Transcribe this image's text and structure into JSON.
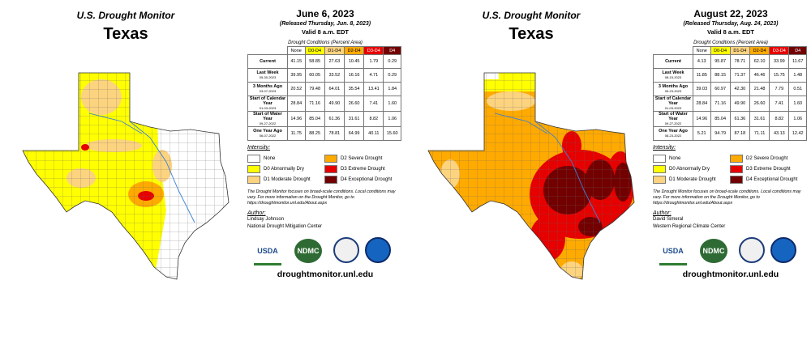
{
  "panels": [
    {
      "header": {
        "program": "U.S. Drought Monitor",
        "state": "Texas"
      },
      "date": "June 6, 2023",
      "released": "(Released Thursday, Jun. 8, 2023)",
      "valid": "Valid 8 a.m. EDT",
      "table": {
        "caption": "Drought Conditions (Percent Area)",
        "columns": [
          {
            "label": "None",
            "color": "#ffffff"
          },
          {
            "label": "D0-D4",
            "color": "#ffff00"
          },
          {
            "label": "D1-D4",
            "color": "#fcd37f"
          },
          {
            "label": "D2-D4",
            "color": "#ffaa00"
          },
          {
            "label": "D3-D4",
            "color": "#e60000"
          },
          {
            "label": "D4",
            "color": "#730000"
          }
        ],
        "rows": [
          {
            "label": "Current",
            "values": [
              "41.15",
              "58.85",
              "27.63",
              "10.45",
              "1.79",
              "0.29"
            ]
          },
          {
            "label": "Last Week",
            "date": "05-30-2023",
            "values": [
              "39.95",
              "60.05",
              "33.52",
              "16.16",
              "4.71",
              "0.29"
            ]
          },
          {
            "label": "3 Months Ago",
            "date": "03-07-2023",
            "values": [
              "20.52",
              "79.48",
              "64.01",
              "35.54",
              "13.41",
              "1.84"
            ]
          },
          {
            "label": "Start of Calendar Year",
            "date": "01-03-2023",
            "values": [
              "28.84",
              "71.16",
              "49.90",
              "26.60",
              "7.41",
              "1.60"
            ]
          },
          {
            "label": "Start of Water Year",
            "date": "09-27-2022",
            "values": [
              "14.96",
              "85.04",
              "61.36",
              "31.61",
              "8.82",
              "1.06"
            ]
          },
          {
            "label": "One Year Ago",
            "date": "06-07-2022",
            "values": [
              "11.75",
              "88.25",
              "78.81",
              "64.99",
              "40.11",
              "15.60"
            ]
          }
        ]
      },
      "intensity": {
        "title": "Intensity:",
        "items": [
          {
            "label": "None",
            "color": "#ffffff"
          },
          {
            "label": "D0 Abnormally Dry",
            "color": "#ffff00"
          },
          {
            "label": "D1 Moderate Drought",
            "color": "#fcd37f"
          },
          {
            "label": "D2 Severe Drought",
            "color": "#ffaa00"
          },
          {
            "label": "D3 Extreme Drought",
            "color": "#e60000"
          },
          {
            "label": "D4 Exceptional Drought",
            "color": "#730000"
          }
        ]
      },
      "note": "The Drought Monitor focuses on broad-scale conditions. Local conditions may vary. For more information on the Drought Monitor, go to https://droughtmonitor.unl.edu/About.aspx",
      "author": {
        "title": "Author:",
        "name": "Lindsay Johnson",
        "org": "National Drought Mitigation Center"
      },
      "logos": [
        "USDA",
        "NDMC"
      ],
      "url": "droughtmonitor.unl.edu"
    },
    {
      "header": {
        "program": "U.S. Drought Monitor",
        "state": "Texas"
      },
      "date": "August 22, 2023",
      "released": "(Released Thursday, Aug. 24, 2023)",
      "valid": "Valid 8 a.m. EDT",
      "table": {
        "caption": "Drought Conditions (Percent Area)",
        "columns": [
          {
            "label": "None",
            "color": "#ffffff"
          },
          {
            "label": "D0-D4",
            "color": "#ffff00"
          },
          {
            "label": "D1-D4",
            "color": "#fcd37f"
          },
          {
            "label": "D2-D4",
            "color": "#ffaa00"
          },
          {
            "label": "D3-D4",
            "color": "#e60000"
          },
          {
            "label": "D4",
            "color": "#730000"
          }
        ],
        "rows": [
          {
            "label": "Current",
            "values": [
              "4.13",
              "95.87",
              "78.71",
              "62.10",
              "33.99",
              "11.67"
            ]
          },
          {
            "label": "Last Week",
            "date": "08-15-2023",
            "values": [
              "11.85",
              "88.15",
              "71.37",
              "46.46",
              "15.75",
              "1.48"
            ]
          },
          {
            "label": "3 Months Ago",
            "date": "05-23-2023",
            "values": [
              "39.03",
              "60.97",
              "42.30",
              "21.48",
              "7.79",
              "0.51"
            ]
          },
          {
            "label": "Start of Calendar Year",
            "date": "01-03-2023",
            "values": [
              "28.84",
              "71.16",
              "49.90",
              "26.60",
              "7.41",
              "1.60"
            ]
          },
          {
            "label": "Start of Water Year",
            "date": "09-27-2022",
            "values": [
              "14.96",
              "85.04",
              "61.36",
              "31.61",
              "8.82",
              "1.06"
            ]
          },
          {
            "label": "One Year Ago",
            "date": "08-23-2022",
            "values": [
              "5.21",
              "94.79",
              "87.18",
              "71.11",
              "43.13",
              "12.42"
            ]
          }
        ]
      },
      "intensity": {
        "title": "Intensity:",
        "items": [
          {
            "label": "None",
            "color": "#ffffff"
          },
          {
            "label": "D0 Abnormally Dry",
            "color": "#ffff00"
          },
          {
            "label": "D1 Moderate Drought",
            "color": "#fcd37f"
          },
          {
            "label": "D2 Severe Drought",
            "color": "#ffaa00"
          },
          {
            "label": "D3 Extreme Drought",
            "color": "#e60000"
          },
          {
            "label": "D4 Exceptional Drought",
            "color": "#730000"
          }
        ]
      },
      "note": "The Drought Monitor focuses on broad-scale conditions. Local conditions may vary. For more information on the Drought Monitor, go to https://droughtmonitor.unl.edu/About.aspx",
      "author": {
        "title": "Author:",
        "name": "David Simeral",
        "org": "Western Regional Climate Center"
      },
      "logos": [
        "USDA",
        "NDMC"
      ],
      "url": "droughtmonitor.unl.edu"
    }
  ]
}
